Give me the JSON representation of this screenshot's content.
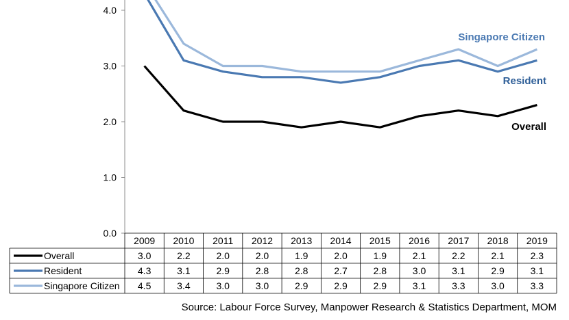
{
  "chart_data": {
    "type": "line",
    "categories": [
      "2009",
      "2010",
      "2011",
      "2012",
      "2013",
      "2014",
      "2015",
      "2016",
      "2017",
      "2018",
      "2019"
    ],
    "series": [
      {
        "name": "Overall",
        "values": [
          3.0,
          2.2,
          2.0,
          2.0,
          1.9,
          2.0,
          1.9,
          2.1,
          2.2,
          2.1,
          2.3
        ],
        "color": "#000000"
      },
      {
        "name": "Resident",
        "values": [
          4.3,
          3.1,
          2.9,
          2.8,
          2.8,
          2.7,
          2.8,
          3.0,
          3.1,
          2.9,
          3.1
        ],
        "color": "#4a79b2"
      },
      {
        "name": "Singapore Citizen",
        "values": [
          4.5,
          3.4,
          3.0,
          3.0,
          2.9,
          2.9,
          2.9,
          3.1,
          3.3,
          3.0,
          3.3
        ],
        "color": "#9bb8db"
      }
    ],
    "y_ticks": [
      "0.0",
      "1.0",
      "2.0",
      "3.0",
      "4.0"
    ],
    "ylim": [
      0,
      4.2
    ],
    "grid": false,
    "legend": "data table below chart",
    "data_table": {
      "rows": [
        {
          "label": "Overall",
          "cells": [
            "3.0",
            "2.2",
            "2.0",
            "2.0",
            "1.9",
            "2.0",
            "1.9",
            "2.1",
            "2.2",
            "2.1",
            "2.3"
          ]
        },
        {
          "label": "Resident",
          "cells": [
            "4.3",
            "3.1",
            "2.9",
            "2.8",
            "2.8",
            "2.7",
            "2.8",
            "3.0",
            "3.1",
            "2.9",
            "3.1"
          ]
        },
        {
          "label": "Singapore Citizen",
          "cells": [
            "4.5",
            "3.4",
            "3.0",
            "3.0",
            "2.9",
            "2.9",
            "2.9",
            "3.1",
            "3.3",
            "3.0",
            "3.3"
          ]
        }
      ]
    },
    "annotations": [
      {
        "text": "Singapore Citizen",
        "series": "Singapore Citizen",
        "color": "#4a79b2"
      },
      {
        "text": "Resident",
        "series": "Resident",
        "color": "#2f5f98"
      },
      {
        "text": "Overall",
        "series": "Overall",
        "color": "#000000"
      }
    ],
    "source": "Source: Labour Force Survey, Manpower Research & Statistics Department, MOM"
  }
}
